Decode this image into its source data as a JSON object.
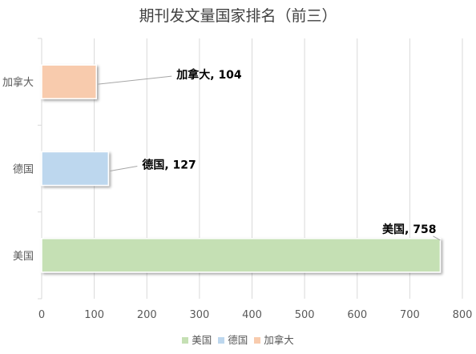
{
  "chart_data": {
    "type": "bar",
    "orientation": "horizontal",
    "title": "期刊发文量国家排名（前三）",
    "categories": [
      "美国",
      "德国",
      "加拿大"
    ],
    "values": [
      758,
      127,
      104
    ],
    "colors": [
      "#c5e0b4",
      "#bdd7ee",
      "#f8cbad"
    ],
    "data_labels": [
      "美国, 758",
      "德国, 127",
      "加拿大, 104"
    ],
    "xlim": [
      0,
      800
    ],
    "xticks": [
      0,
      100,
      200,
      300,
      400,
      500,
      600,
      700,
      800
    ],
    "grid": true,
    "legend": {
      "position": "bottom",
      "entries": [
        "美国",
        "德国",
        "加拿大"
      ]
    }
  }
}
